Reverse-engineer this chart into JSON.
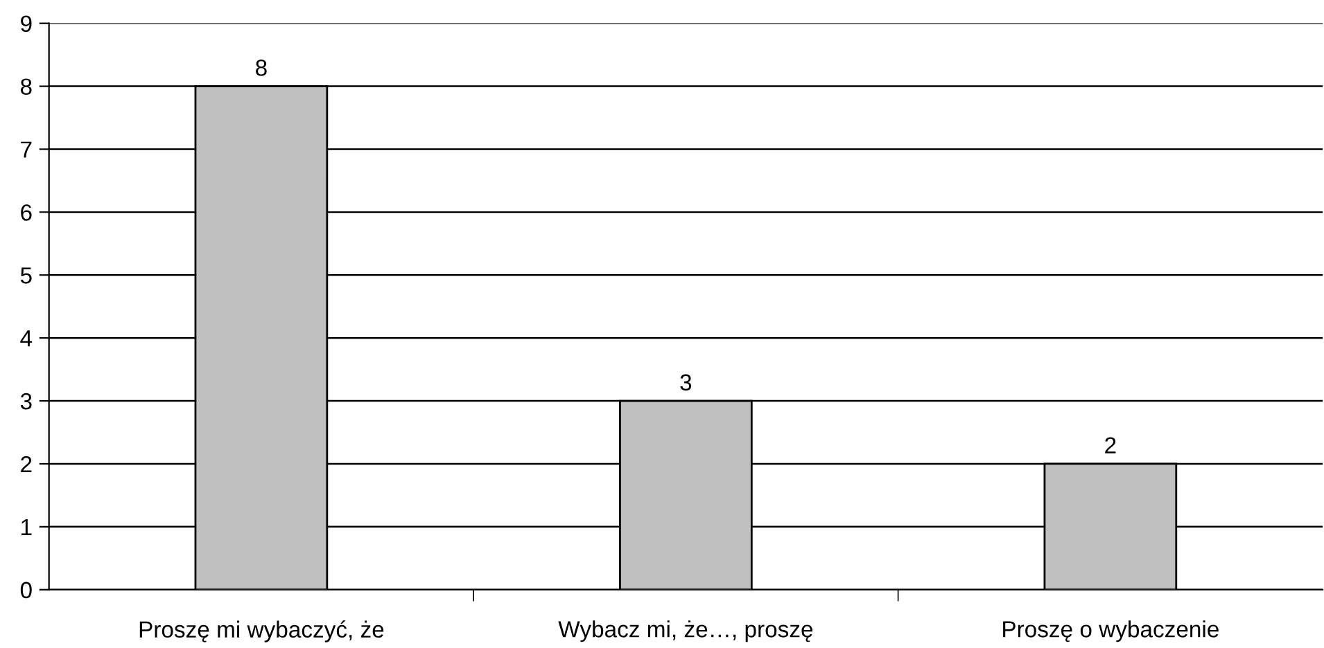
{
  "chart_data": {
    "type": "bar",
    "categories": [
      "Proszę mi wybaczyć, że",
      "Wybacz mi, że…, proszę",
      "Proszę o wybaczenie"
    ],
    "values": [
      8,
      3,
      2
    ],
    "color": "#c0c0c0",
    "ylim": [
      0,
      9
    ],
    "yticks": [
      0,
      1,
      2,
      3,
      4,
      5,
      6,
      7,
      8,
      9
    ],
    "grid": "y",
    "data_labels": true
  }
}
